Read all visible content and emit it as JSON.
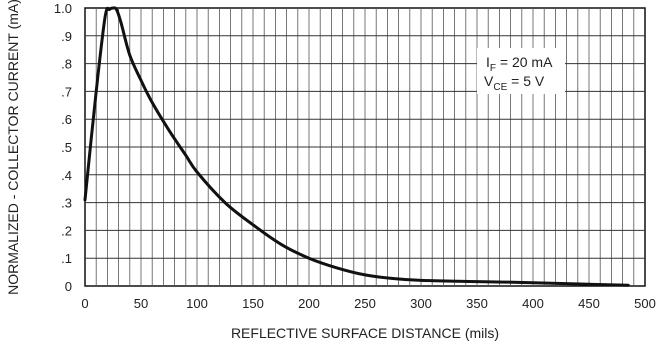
{
  "chart_data": {
    "type": "line",
    "title": "",
    "xlabel": "REFLECTIVE SURFACE DISTANCE (mils)",
    "ylabel": "NORMALIZED - COLLECTOR CURRENT (mA)",
    "xlim": [
      0,
      500
    ],
    "ylim": [
      0,
      1.0
    ],
    "x_ticks": [
      0,
      50,
      100,
      150,
      200,
      250,
      300,
      350,
      400,
      450,
      500
    ],
    "y_ticks": [
      0,
      0.1,
      0.2,
      0.3,
      0.4,
      0.5,
      0.6,
      0.7,
      0.8,
      0.9,
      1.0
    ],
    "x_tick_labels": [
      "0",
      "50",
      "100",
      "150",
      "200",
      "250",
      "300",
      "350",
      "400",
      "450",
      "500"
    ],
    "y_tick_labels": [
      "0",
      ".1",
      ".2",
      ".3",
      ".4",
      ".5",
      ".6",
      ".7",
      ".8",
      ".9",
      "1.0"
    ],
    "grid": true,
    "annotation": {
      "line1_main": "I",
      "line1_sub": "F",
      "line1_rest": " = 20 mA",
      "line2_main": "V",
      "line2_sub": "CE",
      "line2_rest": " = 5 V"
    },
    "series": [
      {
        "x": [
          0,
          10,
          18,
          22,
          25,
          28,
          32,
          40,
          50,
          60,
          75,
          90,
          100,
          125,
          150,
          175,
          200,
          225,
          250,
          275,
          300,
          350,
          400,
          450,
          485
        ],
        "values": [
          0.31,
          0.7,
          0.97,
          0.995,
          1.0,
          0.995,
          0.95,
          0.83,
          0.74,
          0.66,
          0.56,
          0.47,
          0.41,
          0.3,
          0.22,
          0.15,
          0.1,
          0.065,
          0.04,
          0.027,
          0.02,
          0.016,
          0.012,
          0.006,
          0.003
        ]
      }
    ]
  }
}
